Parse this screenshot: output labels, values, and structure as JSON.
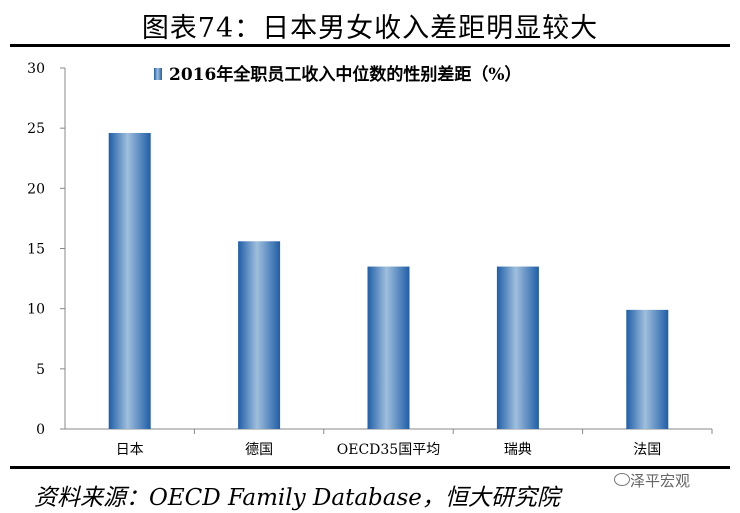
{
  "title": "图表74：日本男女收入差距明显较大",
  "source": "资料来源：OECD Family Database，恒大研究院",
  "watermark": "泽平宏观",
  "chart_data": {
    "type": "bar",
    "categories": [
      "日本",
      "德国",
      "OECD35国平均",
      "瑞典",
      "法国"
    ],
    "series": [
      {
        "name": "2016年全职员工收入中位数的性别差距（%）",
        "values": [
          24.6,
          15.6,
          13.5,
          13.5,
          9.9
        ]
      }
    ],
    "ylim": [
      0,
      30
    ],
    "yticks": [
      0,
      5,
      10,
      15,
      20,
      25,
      30
    ],
    "legend_position": "top-center",
    "grid": false,
    "bar_color": "#2e6db4"
  }
}
